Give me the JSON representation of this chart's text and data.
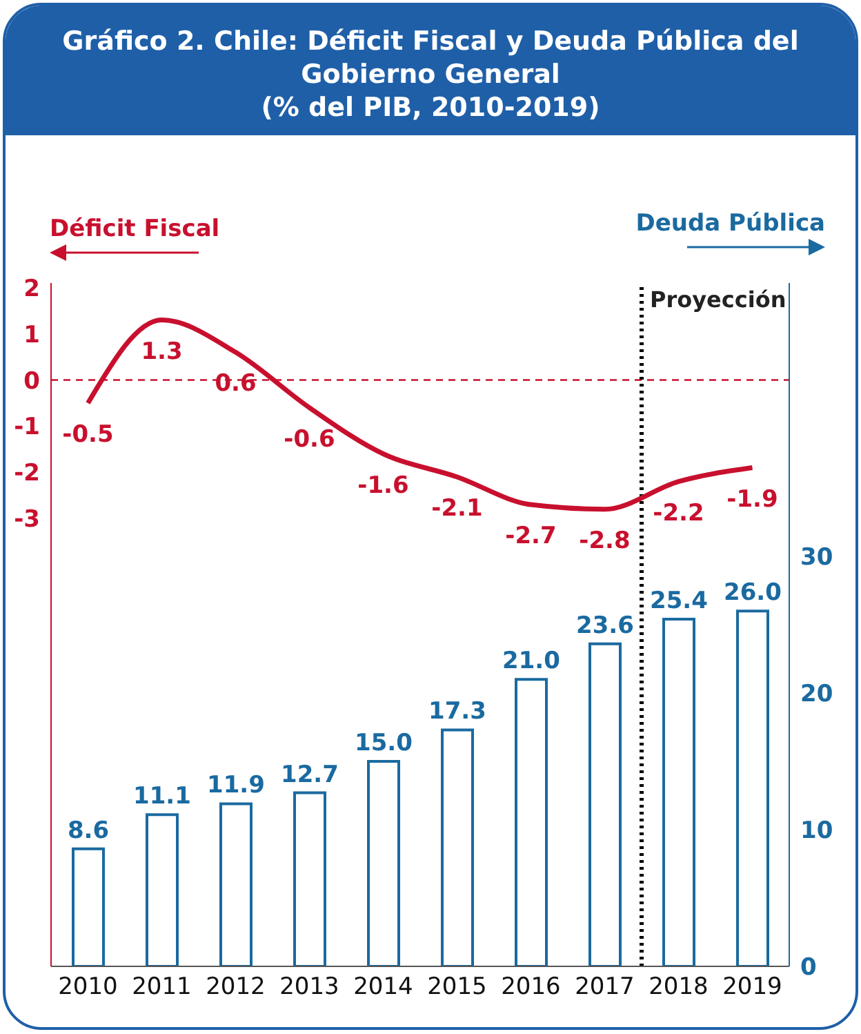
{
  "chart_data": {
    "type": "bar",
    "title": "Gráfico 2. Chile: Déficit Fiscal y Deuda Pública del Gobierno General",
    "subtitle": "(% del PIB, 2010-2019)",
    "ylabel": "Déficit Fiscal",
    "y2label": "Deuda Pública",
    "x": [
      2010,
      2011,
      2012,
      2013,
      2014,
      2015,
      2016,
      2017,
      2018,
      2019
    ],
    "xlim": [
      2009.5,
      2019.5
    ],
    "xticks": [
      2010,
      2011,
      2012,
      2013,
      2014,
      2015,
      2016,
      2017,
      2018,
      2019
    ],
    "ylim": [
      -12.7,
      2.1
    ],
    "yticks": [
      -3,
      -2,
      -1,
      0,
      1,
      2
    ],
    "y2lim": [
      0,
      50
    ],
    "y2ticks": [
      0,
      10,
      20,
      30
    ],
    "series": [
      {
        "type": "line",
        "color": "#c8102e",
        "values": [
          -0.5,
          1.3,
          0.6,
          -0.6,
          -1.6,
          -2.1,
          -2.7,
          -2.8,
          -2.2,
          -1.9
        ]
      },
      {
        "axis": "y2",
        "color": "#1a6aa0",
        "values": [
          8.6,
          11.1,
          11.9,
          12.7,
          15.0,
          17.3,
          21.0,
          23.6,
          25.4,
          26.0
        ],
        "value_labels": [
          "8.6",
          "11.1",
          "11.9",
          "12.7",
          "15.0",
          "17.3",
          "21.0",
          "23.6",
          "25.4",
          "26.0"
        ]
      }
    ],
    "ref_lines": [
      {
        "axis": "y",
        "value": 0,
        "color": "#c8102e",
        "line_style": "dashed"
      },
      {
        "axis": "x",
        "value": 2017.5,
        "label": "Proyección",
        "color": "#000000",
        "line_style": "dotted"
      }
    ],
    "data_labels": true,
    "grid": false,
    "marker": "none"
  }
}
